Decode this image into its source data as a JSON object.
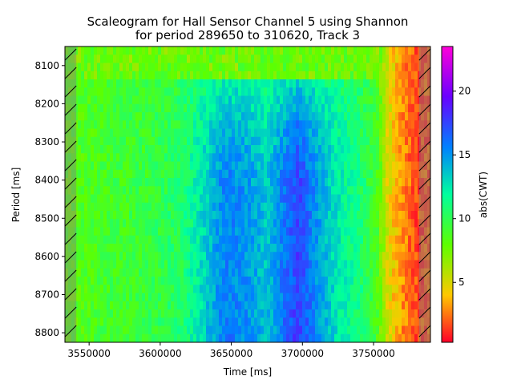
{
  "chart_data": {
    "type": "heatmap",
    "title_line1": "Scaleogram for Hall Sensor Channel 5 using Shannon",
    "title_line2": "for period 289650 to 310620, Track 3",
    "xlabel": "Time [ms]",
    "ylabel": "Period [ms]",
    "colorbar_label": "abs(CWT)",
    "xlim": [
      3533000,
      3790000
    ],
    "ylim": [
      8050,
      8825
    ],
    "y_inverted": true,
    "x_ticks": [
      3550000,
      3600000,
      3650000,
      3700000,
      3750000
    ],
    "x_tick_labels": [
      "3550000",
      "3600000",
      "3650000",
      "3700000",
      "3750000"
    ],
    "y_ticks": [
      8100,
      8200,
      8300,
      8400,
      8500,
      8600,
      8700,
      8800
    ],
    "y_tick_labels": [
      "8100",
      "8200",
      "8300",
      "8400",
      "8500",
      "8600",
      "8700",
      "8800"
    ],
    "colorbar_range": [
      0.3,
      23.5
    ],
    "colorbar_ticks": [
      5,
      10,
      15,
      20
    ],
    "colorbar_tick_labels": [
      "5",
      "10",
      "15",
      "20"
    ],
    "colormap": "gist_rainbow_r",
    "hatched_regions_x": [
      [
        3533000,
        3541000
      ],
      [
        3782000,
        3790000
      ]
    ],
    "time_profile": [
      {
        "t": 3533000,
        "v": 8.0
      },
      {
        "t": 3545000,
        "v": 8.5
      },
      {
        "t": 3560000,
        "v": 9.0
      },
      {
        "t": 3590000,
        "v": 9.5
      },
      {
        "t": 3615000,
        "v": 10.5
      },
      {
        "t": 3630000,
        "v": 13.0
      },
      {
        "t": 3645000,
        "v": 15.5
      },
      {
        "t": 3660000,
        "v": 15.0
      },
      {
        "t": 3675000,
        "v": 13.5
      },
      {
        "t": 3685000,
        "v": 15.5
      },
      {
        "t": 3697000,
        "v": 17.5
      },
      {
        "t": 3710000,
        "v": 15.0
      },
      {
        "t": 3725000,
        "v": 12.5
      },
      {
        "t": 3740000,
        "v": 11.0
      },
      {
        "t": 3752000,
        "v": 9.0
      },
      {
        "t": 3760000,
        "v": 5.0
      },
      {
        "t": 3770000,
        "v": 3.0
      },
      {
        "t": 3782000,
        "v": 1.5
      },
      {
        "t": 3790000,
        "v": 2.0
      }
    ],
    "period_profile": [
      {
        "p": 8050,
        "f": 0.25
      },
      {
        "p": 8100,
        "f": 0.35
      },
      {
        "p": 8150,
        "f": 0.5
      },
      {
        "p": 8200,
        "f": 0.65
      },
      {
        "p": 8300,
        "f": 0.85
      },
      {
        "p": 8400,
        "f": 1.0
      },
      {
        "p": 8600,
        "f": 1.0
      },
      {
        "p": 8825,
        "f": 1.05
      }
    ]
  }
}
